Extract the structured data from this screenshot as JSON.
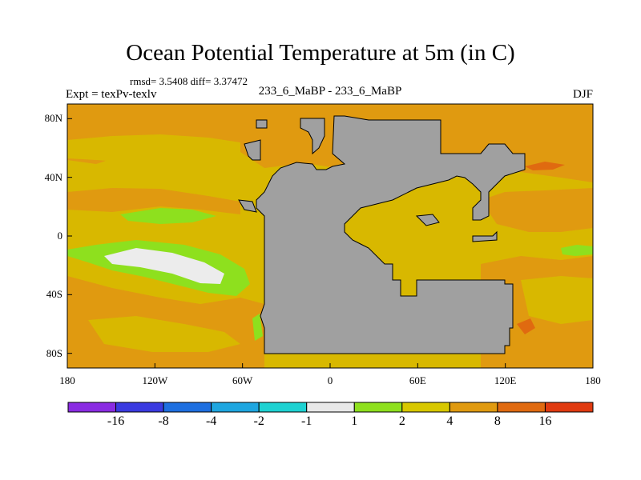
{
  "title": "Ocean Potential Temperature at 5m (in C)",
  "stats": "rmsd= 3.5408 diff= 3.37472",
  "expt": "Expt = texPv-texlv",
  "runs": "233_6_MaBP - 233_6_MaBP",
  "season": "DJF",
  "map": {
    "projection": "cylindrical-equidistant",
    "lon_range": [
      -180,
      180
    ],
    "lat_range": [
      -90,
      90
    ],
    "land_color": "#a0a0a0",
    "ocean_base_color": "#d8b800"
  },
  "axes": {
    "y_ticks": [
      {
        "label": "80N",
        "lat": 80
      },
      {
        "label": "40N",
        "lat": 40
      },
      {
        "label": "0",
        "lat": 0
      },
      {
        "label": "40S",
        "lat": -40
      },
      {
        "label": "80S",
        "lat": -80
      }
    ],
    "x_ticks": [
      {
        "label": "180",
        "lon": -180
      },
      {
        "label": "120W",
        "lon": -120
      },
      {
        "label": "60W",
        "lon": -60
      },
      {
        "label": "0",
        "lon": 0
      },
      {
        "label": "60E",
        "lon": 60
      },
      {
        "label": "120E",
        "lon": 120
      },
      {
        "label": "180",
        "lon": 180
      }
    ]
  },
  "colorbar": {
    "colors": [
      "#8a2be2",
      "#3a3ae0",
      "#1e6fe0",
      "#1ea6e0",
      "#1ed2d2",
      "#e8e8e8",
      "#8ee01e",
      "#d8c800",
      "#e09a10",
      "#e06a10",
      "#e03a10"
    ],
    "labels": [
      {
        "text": "-16",
        "boundary": 1
      },
      {
        "text": "-8",
        "boundary": 2
      },
      {
        "text": "-4",
        "boundary": 3
      },
      {
        "text": "-2",
        "boundary": 4
      },
      {
        "text": "-1",
        "boundary": 5
      },
      {
        "text": "1",
        "boundary": 6
      },
      {
        "text": "2",
        "boundary": 7
      },
      {
        "text": "4",
        "boundary": 8
      },
      {
        "text": "8",
        "boundary": 9
      },
      {
        "text": "16",
        "boundary": 10
      }
    ]
  }
}
